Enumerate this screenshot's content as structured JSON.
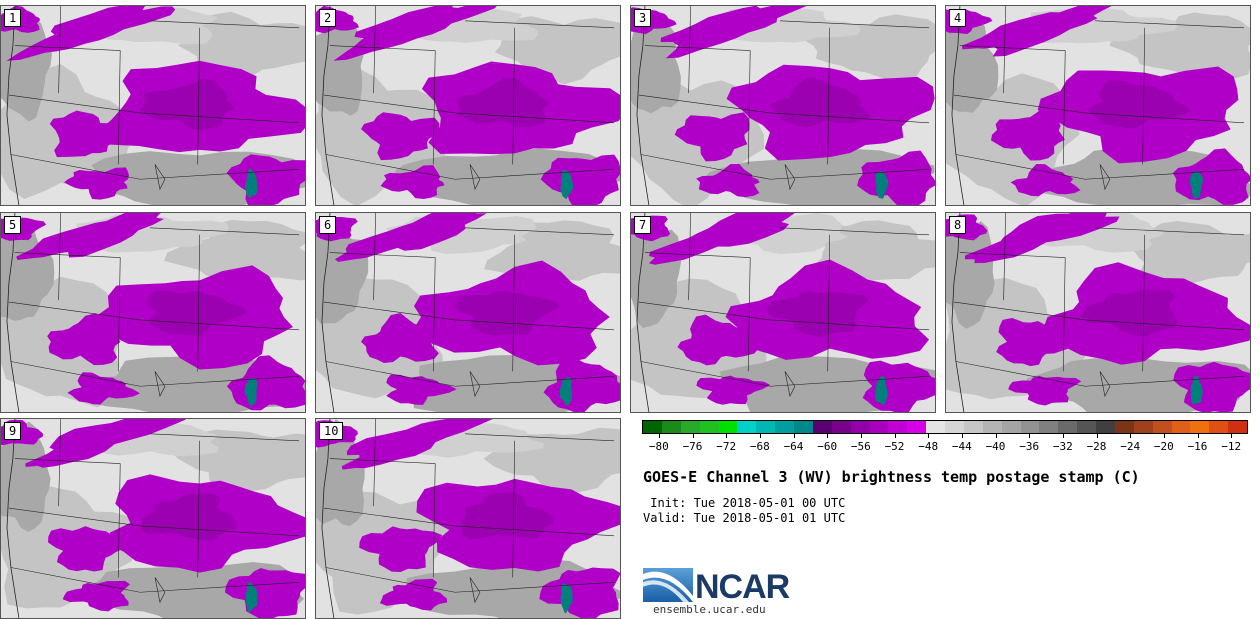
{
  "panels": [
    {
      "label": "1"
    },
    {
      "label": "2"
    },
    {
      "label": "3"
    },
    {
      "label": "4"
    },
    {
      "label": "5"
    },
    {
      "label": "6"
    },
    {
      "label": "7"
    },
    {
      "label": "8"
    },
    {
      "label": "9"
    },
    {
      "label": "10"
    }
  ],
  "colorbar": {
    "colors": [
      "#006400",
      "#1a8a1a",
      "#2aa82a",
      "#20c020",
      "#00e000",
      "#00d0c8",
      "#00b8b0",
      "#009f9f",
      "#008888",
      "#5a0070",
      "#78008a",
      "#9200a8",
      "#a800bc",
      "#c000d4",
      "#d800e8",
      "#e4e4e4",
      "#d6d6d6",
      "#c6c6c6",
      "#b4b4b4",
      "#a4a4a4",
      "#929292",
      "#808080",
      "#6a6a6a",
      "#555555",
      "#404040",
      "#7a3418",
      "#a0401c",
      "#c05020",
      "#e06018",
      "#f07010",
      "#e05010",
      "#d03010"
    ],
    "ticks": [
      "-80",
      "-76",
      "-72",
      "-68",
      "-64",
      "-60",
      "-56",
      "-52",
      "-48",
      "-44",
      "-40",
      "-36",
      "-32",
      "-28",
      "-24",
      "-20",
      "-16",
      "-12"
    ],
    "range": [
      -82,
      -10
    ]
  },
  "title": "GOES-E Channel 3 (WV) brightness temp postage stamp (C)",
  "init": " Init: Tue 2018-05-01 00 UTC",
  "valid": "Valid: Tue 2018-05-01 01 UTC",
  "logo_text": "NCAR",
  "site": "ensemble.ucar.edu",
  "colors": {
    "moisture": "#b000c8",
    "moisture_dark": "#8a009e",
    "dry_light": "#e2e2e2",
    "dry_mid": "#c4c4c4",
    "dry_dark": "#a8a8a8",
    "teal": "#00807a",
    "border": "#222222"
  }
}
